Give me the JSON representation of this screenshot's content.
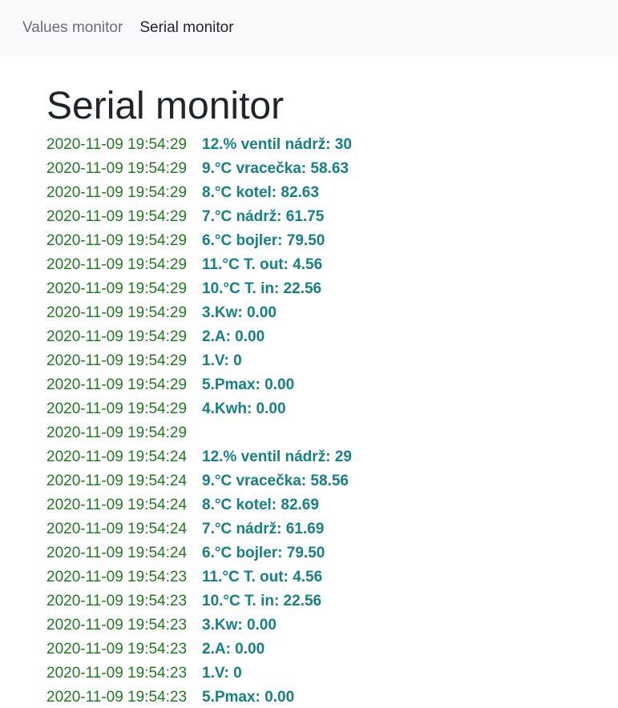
{
  "nav": {
    "items": [
      {
        "label": "Values monitor",
        "active": false
      },
      {
        "label": "Serial monitor",
        "active": true
      }
    ]
  },
  "page": {
    "title": "Serial monitor"
  },
  "log": [
    {
      "ts": "2020-11-09 19:54:29",
      "msg": "12.% ventil nádrž: 30"
    },
    {
      "ts": "2020-11-09 19:54:29",
      "msg": "9.°C vracečka: 58.63"
    },
    {
      "ts": "2020-11-09 19:54:29",
      "msg": "8.°C kotel: 82.63"
    },
    {
      "ts": "2020-11-09 19:54:29",
      "msg": "7.°C nádrž: 61.75"
    },
    {
      "ts": "2020-11-09 19:54:29",
      "msg": "6.°C bojler: 79.50"
    },
    {
      "ts": "2020-11-09 19:54:29",
      "msg": "11.°C T. out: 4.56"
    },
    {
      "ts": "2020-11-09 19:54:29",
      "msg": "10.°C T. in: 22.56"
    },
    {
      "ts": "2020-11-09 19:54:29",
      "msg": "3.Kw: 0.00"
    },
    {
      "ts": "2020-11-09 19:54:29",
      "msg": "2.A: 0.00"
    },
    {
      "ts": "2020-11-09 19:54:29",
      "msg": "1.V: 0"
    },
    {
      "ts": "2020-11-09 19:54:29",
      "msg": "5.Pmax: 0.00"
    },
    {
      "ts": "2020-11-09 19:54:29",
      "msg": "4.Kwh: 0.00"
    },
    {
      "ts": "2020-11-09 19:54:29",
      "msg": ""
    },
    {
      "ts": "2020-11-09 19:54:24",
      "msg": "12.% ventil nádrž: 29"
    },
    {
      "ts": "2020-11-09 19:54:24",
      "msg": "9.°C vracečka: 58.56"
    },
    {
      "ts": "2020-11-09 19:54:24",
      "msg": "8.°C kotel: 82.69"
    },
    {
      "ts": "2020-11-09 19:54:24",
      "msg": "7.°C nádrž: 61.69"
    },
    {
      "ts": "2020-11-09 19:54:24",
      "msg": "6.°C bojler: 79.50"
    },
    {
      "ts": "2020-11-09 19:54:23",
      "msg": "11.°C T. out: 4.56"
    },
    {
      "ts": "2020-11-09 19:54:23",
      "msg": "10.°C T. in: 22.56"
    },
    {
      "ts": "2020-11-09 19:54:23",
      "msg": "3.Kw: 0.00"
    },
    {
      "ts": "2020-11-09 19:54:23",
      "msg": "2.A: 0.00"
    },
    {
      "ts": "2020-11-09 19:54:23",
      "msg": "1.V: 0"
    },
    {
      "ts": "2020-11-09 19:54:23",
      "msg": "5.Pmax: 0.00"
    }
  ]
}
